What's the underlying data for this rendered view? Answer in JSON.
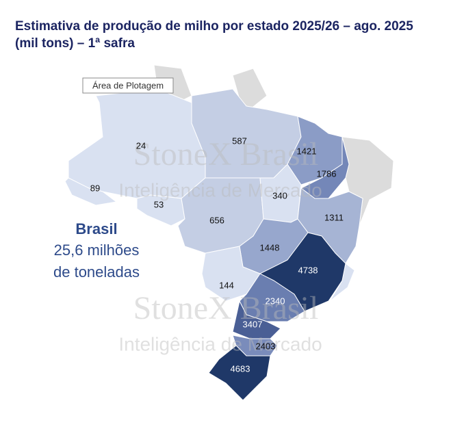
{
  "chart_data": {
    "type": "choropleth",
    "title": "Estimativa de produção de milho por estado 2025/26 – ago. 2025",
    "subtitle": "(mil tons) – 1ª safra",
    "tooltip": "Área de Plotagem",
    "watermark": [
      "StoneX Brasil",
      "Inteligência de Mercado",
      "StoneX Brasil",
      "Inteligência de Mercado"
    ],
    "total": {
      "name": "Brasil",
      "value_lines": [
        "25,6 milhões",
        "de toneladas"
      ]
    },
    "values": [
      24,
      587,
      89,
      53,
      656,
      340,
      1421,
      1786,
      1311,
      1448,
      144,
      4738,
      2340,
      3407,
      2403,
      4683
    ],
    "colors": [
      "#d9e1f1",
      "#c4cee4",
      "#d9e1f1",
      "#d9e1f1",
      "#c4cee4",
      "#d9e1f1",
      "#8b9cc6",
      "#7487b8",
      "#a6b4d4",
      "#97a7cd",
      "#d9e1f1",
      "#1f3868",
      "#6a7eb0",
      "#4a5f95",
      "#7a8cbb",
      "#1f3868"
    ]
  }
}
